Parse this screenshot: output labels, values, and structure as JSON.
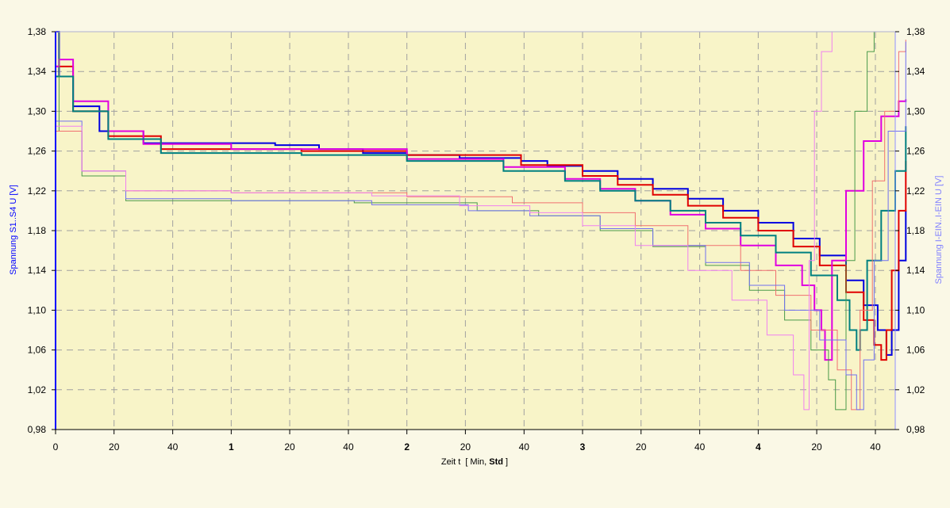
{
  "chart_data": {
    "type": "line",
    "xlabel": "Zeit   t",
    "xunit_prefix": "[ Min, ",
    "xunit_bold": "Std",
    "xunit_suffix": " ]",
    "ylabel_left": "Spannung S1..S4   U   [V]",
    "ylabel_right": "Spannung I-EIN..I-EIN   U   [V]",
    "xlim": [
      0,
      4.78
    ],
    "ylim": [
      0.98,
      1.38
    ],
    "y_ticks": [
      "0,98",
      "1,02",
      "1,06",
      "1,10",
      "1,14",
      "1,18",
      "1,22",
      "1,26",
      "1,30",
      "1,34",
      "1,38"
    ],
    "x_ticks": [
      {
        "x": 0,
        "label": "0",
        "bold": false
      },
      {
        "x": 0.333,
        "label": "20",
        "bold": false
      },
      {
        "x": 0.667,
        "label": "40",
        "bold": false
      },
      {
        "x": 1,
        "label": "1",
        "bold": true
      },
      {
        "x": 1.333,
        "label": "20",
        "bold": false
      },
      {
        "x": 1.667,
        "label": "40",
        "bold": false
      },
      {
        "x": 2,
        "label": "2",
        "bold": true
      },
      {
        "x": 2.333,
        "label": "20",
        "bold": false
      },
      {
        "x": 2.667,
        "label": "40",
        "bold": false
      },
      {
        "x": 3,
        "label": "3",
        "bold": true
      },
      {
        "x": 3.333,
        "label": "20",
        "bold": false
      },
      {
        "x": 3.667,
        "label": "40",
        "bold": false
      },
      {
        "x": 4,
        "label": "4",
        "bold": true
      },
      {
        "x": 4.333,
        "label": "20",
        "bold": false
      },
      {
        "x": 4.667,
        "label": "40",
        "bold": false
      }
    ],
    "grid": true,
    "colors": {
      "background": "#faf8e6",
      "plot_bg": "#f8f4c8",
      "grid": "#a0a0a0",
      "left_axis": "#0000ff",
      "right_axis": "#9090ff"
    },
    "series": [
      {
        "color": "#0000e0",
        "width": 2,
        "points": [
          [
            0,
            1.38
          ],
          [
            0.02,
            1.335
          ],
          [
            0.1,
            1.305
          ],
          [
            0.25,
            1.28
          ],
          [
            0.5,
            1.268
          ],
          [
            1.25,
            1.266
          ],
          [
            1.5,
            1.262
          ],
          [
            1.75,
            1.258
          ],
          [
            2,
            1.256
          ],
          [
            2.3,
            1.253
          ],
          [
            2.65,
            1.25
          ],
          [
            2.8,
            1.245
          ],
          [
            3,
            1.24
          ],
          [
            3.2,
            1.232
          ],
          [
            3.4,
            1.222
          ],
          [
            3.6,
            1.212
          ],
          [
            3.8,
            1.2
          ],
          [
            4,
            1.188
          ],
          [
            4.2,
            1.172
          ],
          [
            4.35,
            1.155
          ],
          [
            4.5,
            1.13
          ],
          [
            4.6,
            1.105
          ],
          [
            4.68,
            1.08
          ],
          [
            4.73,
            1.055
          ],
          [
            4.76,
            1.08
          ],
          [
            4.8,
            1.15
          ],
          [
            4.84,
            1.2
          ]
        ]
      },
      {
        "color": "#e00000",
        "width": 2,
        "points": [
          [
            0,
            1.345
          ],
          [
            0.1,
            1.3
          ],
          [
            0.3,
            1.275
          ],
          [
            0.6,
            1.262
          ],
          [
            1.4,
            1.26
          ],
          [
            2,
            1.256
          ],
          [
            2.65,
            1.246
          ],
          [
            3,
            1.235
          ],
          [
            3.2,
            1.226
          ],
          [
            3.4,
            1.216
          ],
          [
            3.6,
            1.205
          ],
          [
            3.8,
            1.193
          ],
          [
            4,
            1.18
          ],
          [
            4.2,
            1.164
          ],
          [
            4.35,
            1.145
          ],
          [
            4.5,
            1.118
          ],
          [
            4.6,
            1.09
          ],
          [
            4.66,
            1.065
          ],
          [
            4.7,
            1.05
          ],
          [
            4.73,
            1.08
          ],
          [
            4.76,
            1.14
          ],
          [
            4.8,
            1.2
          ],
          [
            4.84,
            1.25
          ]
        ]
      },
      {
        "color": "#e000e0",
        "width": 2,
        "points": [
          [
            0,
            1.345
          ],
          [
            0.02,
            1.352
          ],
          [
            0.1,
            1.31
          ],
          [
            0.3,
            1.28
          ],
          [
            0.5,
            1.267
          ],
          [
            1,
            1.262
          ],
          [
            2,
            1.252
          ],
          [
            2.55,
            1.244
          ],
          [
            2.9,
            1.232
          ],
          [
            3.1,
            1.222
          ],
          [
            3.3,
            1.21
          ],
          [
            3.5,
            1.196
          ],
          [
            3.7,
            1.182
          ],
          [
            3.9,
            1.165
          ],
          [
            4.1,
            1.145
          ],
          [
            4.25,
            1.125
          ],
          [
            4.32,
            1.1
          ],
          [
            4.36,
            1.08
          ],
          [
            4.38,
            1.05
          ],
          [
            4.42,
            1.15
          ],
          [
            4.5,
            1.22
          ],
          [
            4.6,
            1.27
          ],
          [
            4.7,
            1.295
          ],
          [
            4.8,
            1.31
          ],
          [
            4.84,
            1.312
          ]
        ]
      },
      {
        "color": "#008080",
        "width": 2,
        "points": [
          [
            0,
            1.335
          ],
          [
            0.1,
            1.3
          ],
          [
            0.3,
            1.272
          ],
          [
            0.6,
            1.258
          ],
          [
            1.4,
            1.256
          ],
          [
            2,
            1.25
          ],
          [
            2.55,
            1.24
          ],
          [
            2.9,
            1.23
          ],
          [
            3.1,
            1.22
          ],
          [
            3.3,
            1.21
          ],
          [
            3.5,
            1.2
          ],
          [
            3.7,
            1.188
          ],
          [
            3.9,
            1.175
          ],
          [
            4.1,
            1.158
          ],
          [
            4.3,
            1.135
          ],
          [
            4.45,
            1.11
          ],
          [
            4.52,
            1.08
          ],
          [
            4.56,
            1.06
          ],
          [
            4.58,
            1.08
          ],
          [
            4.62,
            1.15
          ],
          [
            4.7,
            1.2
          ],
          [
            4.78,
            1.24
          ],
          [
            4.84,
            1.285
          ]
        ]
      },
      {
        "color": "#4a9a4a",
        "width": 1,
        "points": [
          [
            0,
            1.38
          ],
          [
            0.02,
            1.28
          ],
          [
            0.15,
            1.235
          ],
          [
            0.4,
            1.21
          ],
          [
            1,
            1.21
          ],
          [
            1.7,
            1.208
          ],
          [
            2.4,
            1.2
          ],
          [
            2.75,
            1.195
          ],
          [
            3.1,
            1.18
          ],
          [
            3.4,
            1.164
          ],
          [
            3.7,
            1.145
          ],
          [
            3.95,
            1.12
          ],
          [
            4.15,
            1.09
          ],
          [
            4.3,
            1.06
          ],
          [
            4.4,
            1.03
          ],
          [
            4.44,
            1.0
          ],
          [
            4.5,
            1.15
          ],
          [
            4.55,
            1.3
          ],
          [
            4.62,
            1.36
          ],
          [
            4.66,
            1.38
          ]
        ]
      },
      {
        "color": "#f07070",
        "width": 1,
        "points": [
          [
            0,
            1.28
          ],
          [
            0.15,
            1.24
          ],
          [
            0.4,
            1.22
          ],
          [
            1,
            1.218
          ],
          [
            2,
            1.214
          ],
          [
            2.6,
            1.208
          ],
          [
            3,
            1.198
          ],
          [
            3.3,
            1.185
          ],
          [
            3.6,
            1.165
          ],
          [
            3.9,
            1.14
          ],
          [
            4.1,
            1.115
          ],
          [
            4.3,
            1.08
          ],
          [
            4.45,
            1.04
          ],
          [
            4.53,
            1.0
          ],
          [
            4.58,
            1.1
          ],
          [
            4.65,
            1.23
          ],
          [
            4.72,
            1.3
          ],
          [
            4.8,
            1.36
          ],
          [
            4.84,
            1.372
          ]
        ]
      },
      {
        "color": "#7070f0",
        "width": 1,
        "points": [
          [
            0,
            1.29
          ],
          [
            0.15,
            1.24
          ],
          [
            0.4,
            1.212
          ],
          [
            1,
            1.21
          ],
          [
            1.8,
            1.206
          ],
          [
            2.35,
            1.2
          ],
          [
            2.7,
            1.195
          ],
          [
            3.1,
            1.182
          ],
          [
            3.4,
            1.165
          ],
          [
            3.7,
            1.148
          ],
          [
            3.95,
            1.125
          ],
          [
            4.15,
            1.1
          ],
          [
            4.35,
            1.07
          ],
          [
            4.5,
            1.035
          ],
          [
            4.56,
            1.0
          ],
          [
            4.6,
            1.05
          ],
          [
            4.66,
            1.15
          ],
          [
            4.74,
            1.28
          ],
          [
            4.84,
            1.37
          ]
        ]
      },
      {
        "color": "#f080f0",
        "width": 1,
        "points": [
          [
            0,
            1.285
          ],
          [
            0.15,
            1.24
          ],
          [
            0.4,
            1.22
          ],
          [
            1,
            1.218
          ],
          [
            1.8,
            1.215
          ],
          [
            2.3,
            1.205
          ],
          [
            2.7,
            1.198
          ],
          [
            3,
            1.185
          ],
          [
            3.3,
            1.165
          ],
          [
            3.6,
            1.14
          ],
          [
            3.85,
            1.11
          ],
          [
            4.05,
            1.075
          ],
          [
            4.2,
            1.035
          ],
          [
            4.26,
            1.0
          ],
          [
            4.29,
            1.15
          ],
          [
            4.32,
            1.3
          ],
          [
            4.36,
            1.36
          ],
          [
            4.42,
            1.38
          ]
        ]
      }
    ]
  }
}
